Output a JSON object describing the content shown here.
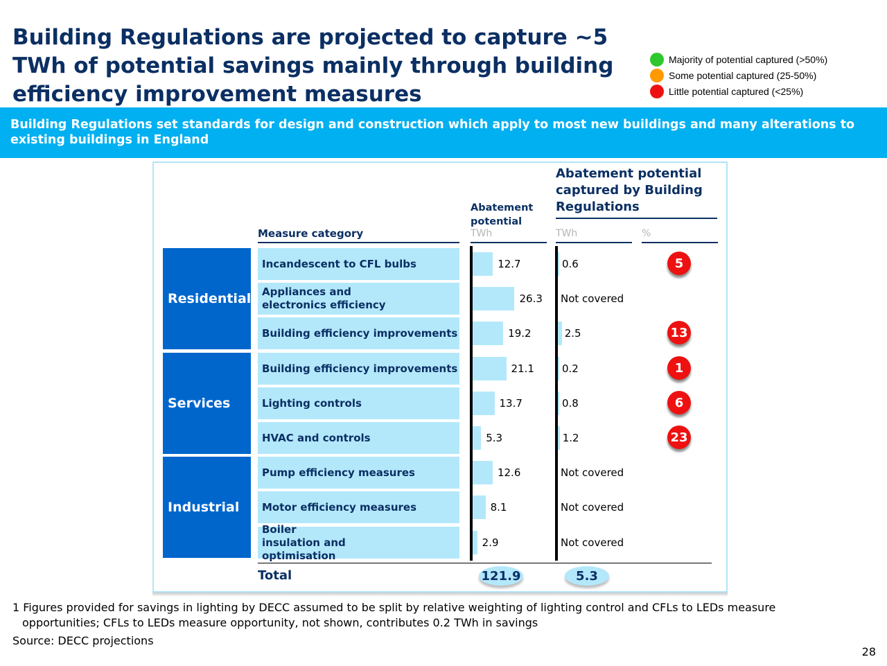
{
  "title": "Building Regulations are projected to capture ~5 TWh of potential savings mainly through building efficiency improvement measures",
  "legend": [
    {
      "label": "Majority of potential captured (>50%)",
      "color": "#2ec82e"
    },
    {
      "label": "Some potential captured (25-50%)",
      "color": "#ff9900"
    },
    {
      "label": "Little potential captured (<25%)",
      "color": "#ee1111"
    }
  ],
  "banner": "Building Regulations set standards for design and construction which apply to most new buildings and many alterations to existing buildings in England",
  "headers": {
    "measure_category": "Measure category",
    "abatement_potential": "Abatement potential",
    "abatement_unit": "TWh",
    "captured": "Abatement potential captured by Building Regulations",
    "captured_unit": "TWh",
    "percent_unit": "%"
  },
  "chart_data": {
    "type": "table",
    "segments": [
      {
        "name": "Residential",
        "rows": 3
      },
      {
        "name": "Services",
        "rows": 3
      },
      {
        "name": "Industrial",
        "rows": 3
      }
    ],
    "rows": [
      {
        "segment": "Residential",
        "measure": "Incandescent to CFL bulbs",
        "potential": 12.7,
        "captured": "0.6",
        "captured_value": 0.6,
        "percent": "5"
      },
      {
        "segment": "Residential",
        "measure": "Appliances and electronics efficiency",
        "potential": 26.3,
        "captured": "Not covered",
        "captured_value": 0,
        "percent": ""
      },
      {
        "segment": "Residential",
        "measure": "Building efficiency improvements",
        "potential": 19.2,
        "captured": "2.5",
        "captured_value": 2.5,
        "percent": "13"
      },
      {
        "segment": "Services",
        "measure": "Building efficiency improvements",
        "potential": 21.1,
        "captured": "0.2",
        "captured_value": 0.2,
        "percent": "1"
      },
      {
        "segment": "Services",
        "measure": "Lighting controls",
        "potential": 13.7,
        "captured": "0.8",
        "captured_value": 0.8,
        "percent": "6"
      },
      {
        "segment": "Services",
        "measure": "HVAC and controls",
        "potential": 5.3,
        "captured": "1.2",
        "captured_value": 1.2,
        "percent": "23"
      },
      {
        "segment": "Industrial",
        "measure": "Pump efficiency measures",
        "potential": 12.6,
        "captured": "Not covered",
        "captured_value": 0,
        "percent": ""
      },
      {
        "segment": "Industrial",
        "measure": "Motor efficiency measures",
        "potential": 8.1,
        "captured": "Not covered",
        "captured_value": 0,
        "percent": ""
      },
      {
        "segment": "Industrial",
        "measure": "Boiler insulation and optimisation",
        "potential": 2.9,
        "captured": "Not covered",
        "captured_value": 0,
        "percent": ""
      }
    ],
    "total_label": "Total",
    "total_potential": "121.9",
    "total_captured": "5.3"
  },
  "footnote_line1": "1 Figures provided for savings in lighting by DECC assumed to be split by relative weighting of lighting control and CFLs to LEDs measure",
  "footnote_line2": "opportunities; CFLs to LEDs measure opportunity, not shown, contributes 0.2 TWh in savings",
  "source": "Source: DECC projections",
  "page_number": "28"
}
